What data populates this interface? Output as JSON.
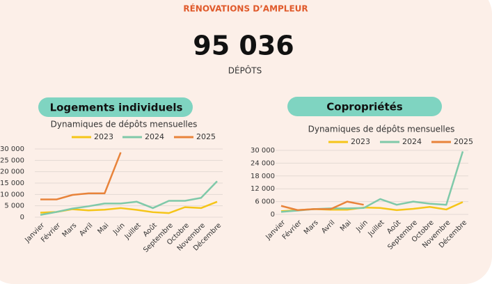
{
  "header": {
    "title": "RÉNOVATIONS D’AMPLEUR",
    "total": "95 036",
    "total_label": "DÉPÔTS"
  },
  "chart_data": [
    {
      "type": "line",
      "heading": "Logements individuels",
      "title": "Dynamiques de dépôts mensuelles",
      "categories": [
        "Janvier",
        "Février",
        "Mars",
        "Avril",
        "Mai",
        "Juin",
        "Juillet",
        "Août",
        "Septembre",
        "Octobre",
        "Novembre",
        "Décembre"
      ],
      "series": [
        {
          "name": "2023",
          "color": "#f5c518",
          "values": [
            2000,
            2300,
            3500,
            3000,
            3300,
            4000,
            3200,
            2200,
            1800,
            4400,
            4000,
            6800
          ]
        },
        {
          "name": "2024",
          "color": "#7fc9a9",
          "values": [
            1000,
            2300,
            3800,
            4800,
            6000,
            6000,
            6800,
            4000,
            7200,
            7200,
            8500,
            15800
          ]
        },
        {
          "name": "2025",
          "color": "#e8833a",
          "values": [
            7800,
            7800,
            9800,
            10500,
            10500,
            28500,
            null,
            null,
            null,
            null,
            null,
            null
          ]
        }
      ],
      "ylim": [
        0,
        30000
      ],
      "yticks": [
        0,
        {
          "value": 5000,
          "label": "5 000"
        },
        {
          "value": 10000,
          "label": "10 000"
        },
        {
          "value": 15000,
          "label": "15 000"
        },
        {
          "value": 20000,
          "label": "20 000"
        },
        {
          "value": 25000,
          "label": "25 000"
        },
        {
          "value": 30000,
          "label": "30 000"
        }
      ],
      "grid": true,
      "legend": "top"
    },
    {
      "type": "line",
      "heading": "Copropriétés",
      "title": "Dynamiques de dépôts mensuelles",
      "categories": [
        "Janvier",
        "Février",
        "Mars",
        "Avril",
        "Mai",
        "Juin",
        "Juillet",
        "Août",
        "Septembre",
        "Octobre",
        "Novembre",
        "Décembre"
      ],
      "series": [
        {
          "name": "2023",
          "color": "#f5c518",
          "values": [
            1500,
            2000,
            2500,
            2200,
            2200,
            3200,
            3000,
            2000,
            2600,
            3500,
            2300,
            5800
          ]
        },
        {
          "name": "2024",
          "color": "#7fc9a9",
          "values": [
            1200,
            1800,
            2500,
            2800,
            2800,
            3000,
            7200,
            4500,
            6000,
            5000,
            4500,
            29500
          ]
        },
        {
          "name": "2025",
          "color": "#e8833a",
          "values": [
            4000,
            2000,
            2500,
            2500,
            6000,
            4500,
            null,
            null,
            null,
            null,
            null,
            null
          ]
        }
      ],
      "ylim": [
        0,
        30000
      ],
      "yticks": [
        0,
        {
          "value": 6000,
          "label": "6 000"
        },
        {
          "value": 12000,
          "label": "12 000"
        },
        {
          "value": 18000,
          "label": "18 000"
        },
        {
          "value": 24000,
          "label": "24 000"
        },
        {
          "value": 30000,
          "label": "30 000"
        }
      ],
      "grid": true,
      "legend": "top"
    }
  ]
}
